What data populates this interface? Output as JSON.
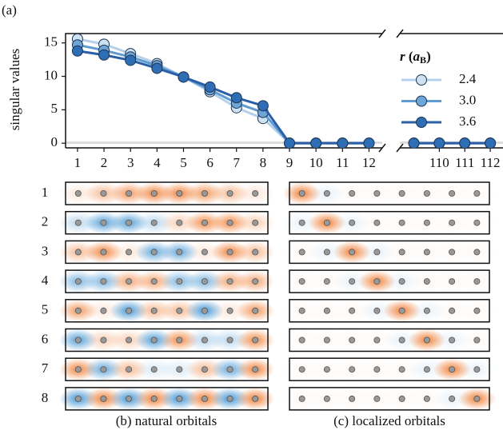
{
  "chart_data": {
    "type": "line",
    "panel_label": "(a)",
    "ylabel": "singular values",
    "legend_title": {
      "symbol": "r",
      "unit": "a",
      "unit_sub": "B"
    },
    "x": [
      1,
      2,
      3,
      4,
      5,
      6,
      7,
      8,
      9,
      10,
      11,
      12,
      109,
      110,
      111,
      112
    ],
    "xlim": [
      0.55,
      12.5
    ],
    "x2lim": [
      108.45,
      112.5
    ],
    "xticks": [
      1,
      2,
      3,
      4,
      5,
      6,
      7,
      8,
      9,
      10,
      11,
      12
    ],
    "x2ticks": [
      110,
      111,
      112
    ],
    "ylim": [
      -0.7,
      16.4
    ],
    "yticks": [
      0,
      5,
      10,
      15
    ],
    "series": [
      {
        "name": "2.4",
        "color": "#b4d0ea",
        "marker": "#cfe2f3",
        "values": [
          15.6,
          14.8,
          13.4,
          11.9,
          9.9,
          7.7,
          5.3,
          3.7,
          0,
          0,
          0,
          0,
          0,
          0,
          0,
          0
        ]
      },
      {
        "name": "3.0",
        "color": "#5f9bd1",
        "marker": "#6ea6d8",
        "values": [
          14.7,
          13.9,
          12.9,
          11.6,
          9.9,
          8.0,
          6.0,
          4.6,
          0,
          0,
          0,
          0,
          0,
          0,
          0,
          0
        ]
      },
      {
        "name": "3.6",
        "color": "#2b5fa6",
        "marker": "#2f6db4",
        "values": [
          13.8,
          13.2,
          12.4,
          11.2,
          9.9,
          8.4,
          6.8,
          5.6,
          0,
          0,
          0,
          0,
          0,
          0,
          0,
          0
        ]
      }
    ]
  },
  "panels": {
    "row_labels": [
      1,
      2,
      3,
      4,
      5,
      6,
      7,
      8
    ],
    "captions": [
      "(b) natural orbitals",
      "(c) localized orbitals"
    ]
  }
}
